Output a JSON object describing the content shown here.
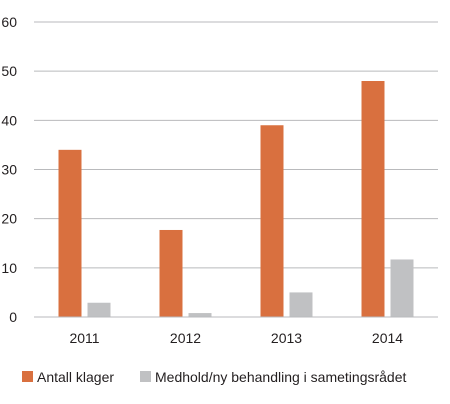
{
  "chart_data": {
    "type": "bar",
    "categories": [
      "2011",
      "2012",
      "2013",
      "2014"
    ],
    "series": [
      {
        "name": "Antall klager",
        "values": [
          34,
          17.7,
          39,
          48
        ],
        "color": "#d9703f"
      },
      {
        "name": "Medhold/ny behandling i sametingsrådet",
        "values": [
          2.9,
          0.8,
          5,
          11.7
        ],
        "color": "#c0c1c3"
      }
    ],
    "ylim": [
      0,
      60
    ],
    "yticks": [
      0,
      10,
      20,
      30,
      40,
      50,
      60
    ],
    "grid": true,
    "legend_position": "bottom"
  }
}
